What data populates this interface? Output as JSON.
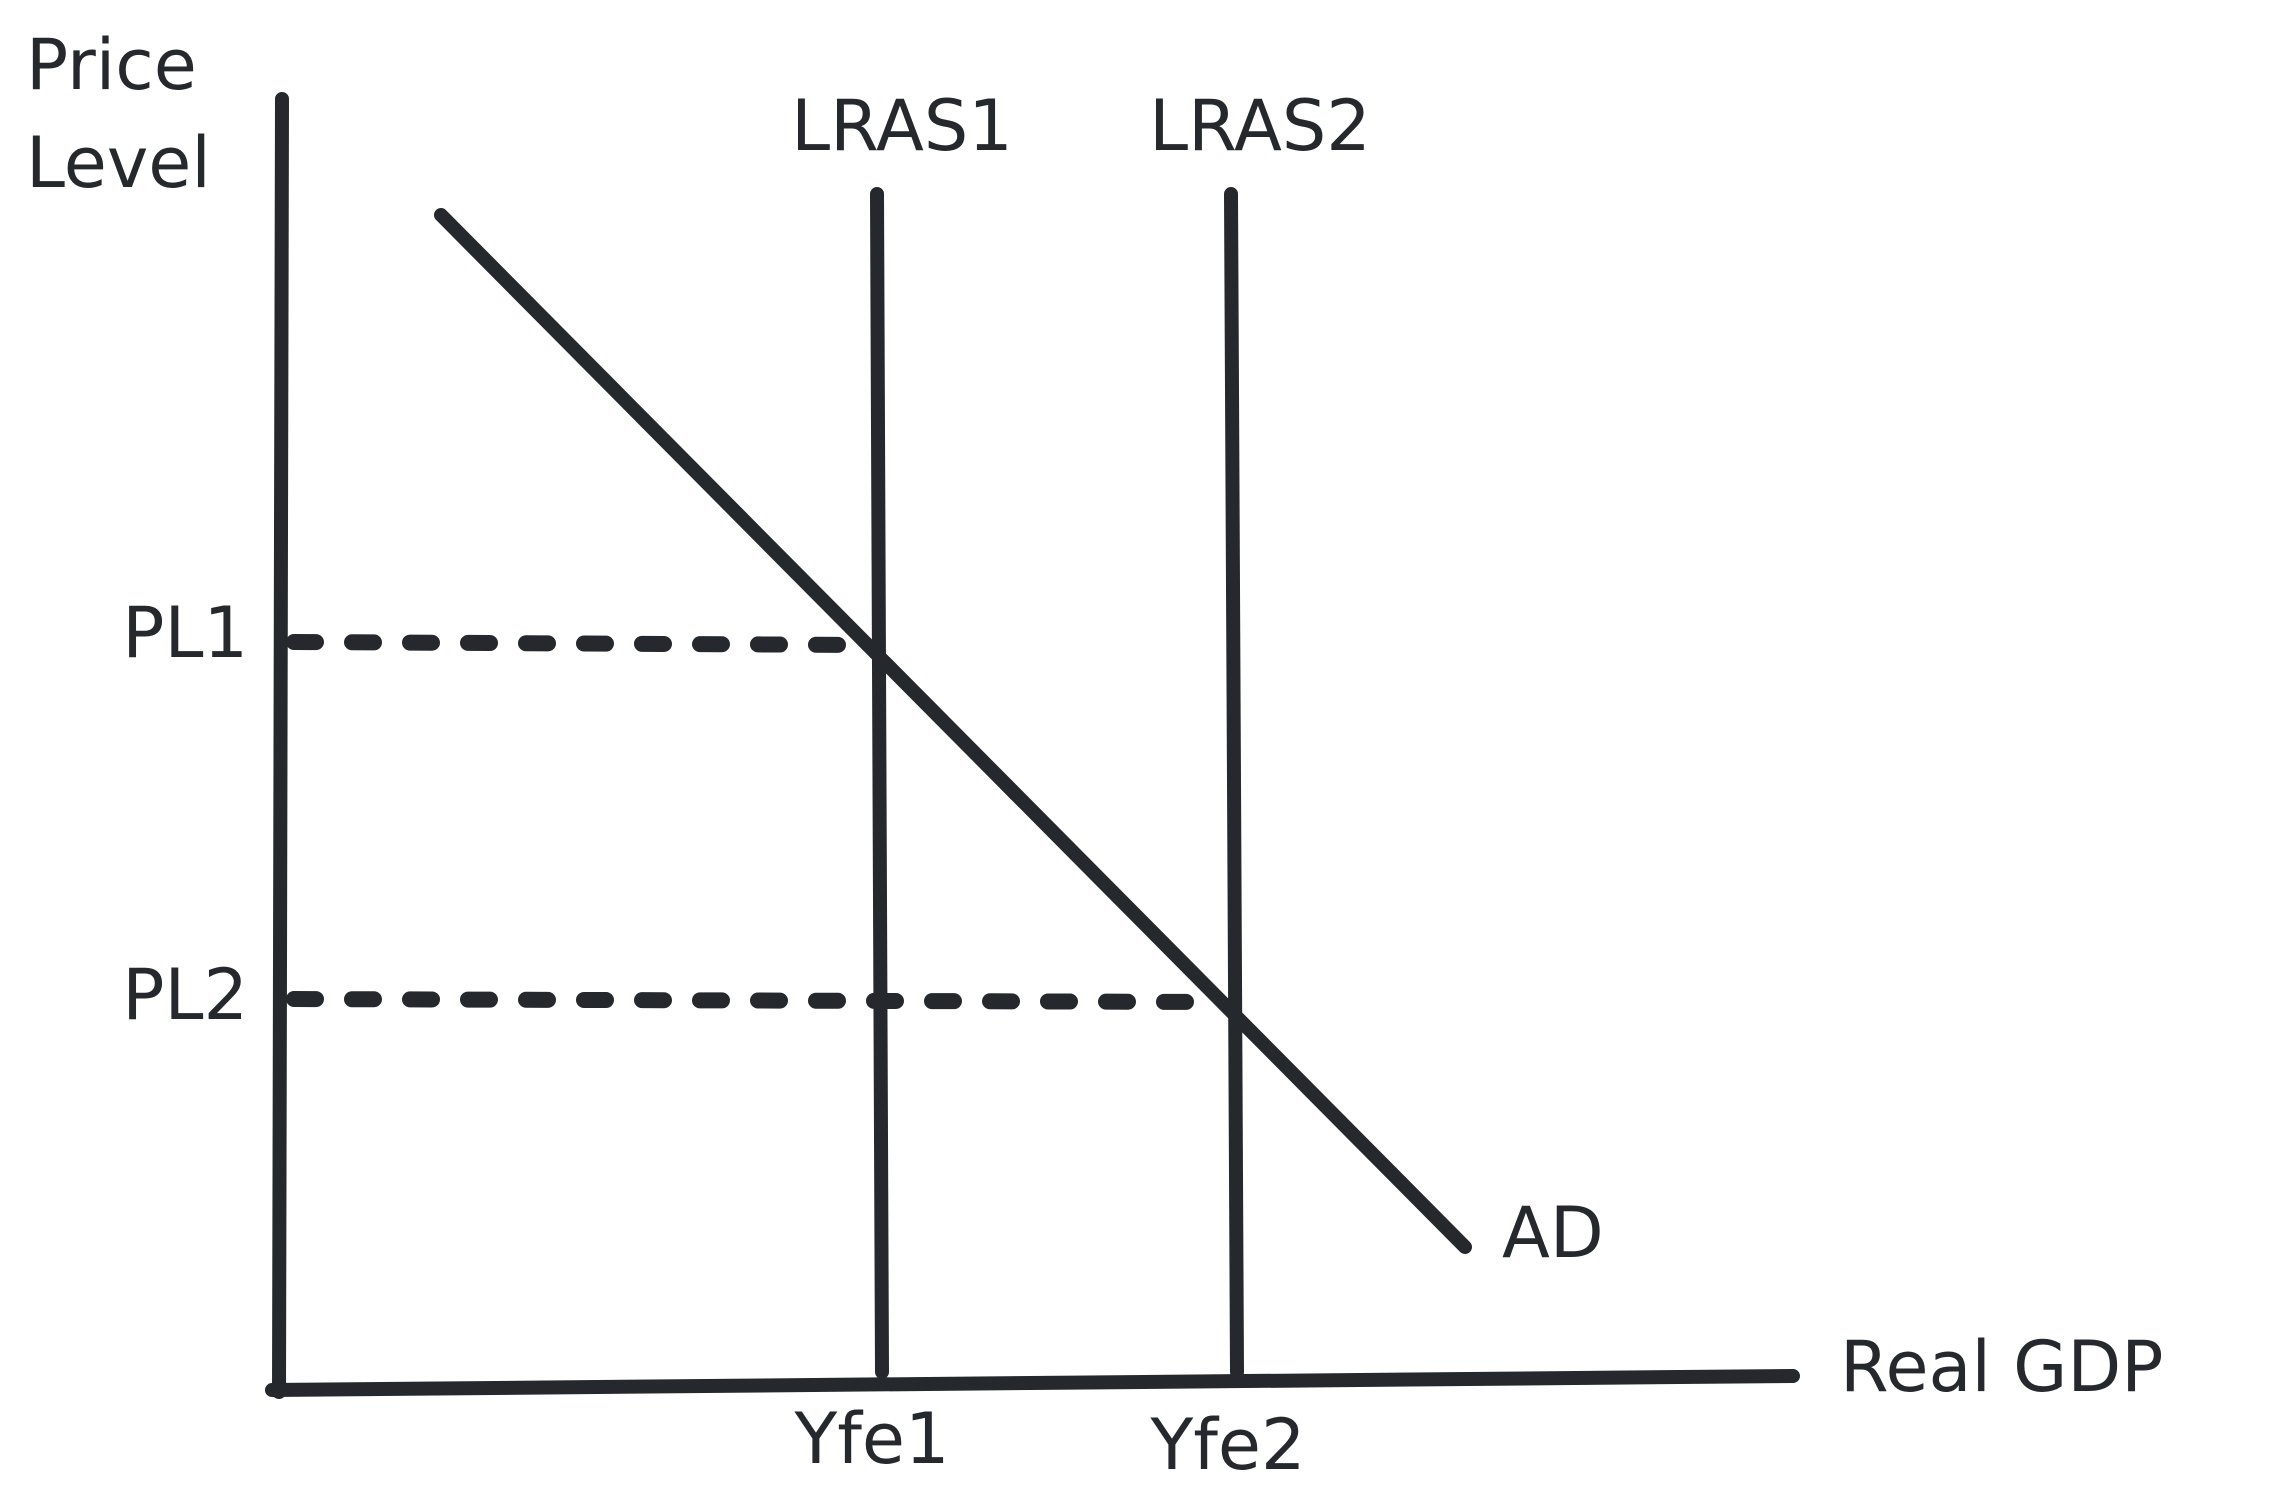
{
  "axes": {
    "y_label": [
      "Price",
      "Level"
    ],
    "x_label": "Real GDP"
  },
  "curves": {
    "lras1": "LRAS1",
    "lras2": "LRAS2",
    "ad": "AD"
  },
  "price_levels": [
    "PL1",
    "PL2"
  ],
  "outputs": [
    "Yfe1",
    "Yfe2"
  ]
}
